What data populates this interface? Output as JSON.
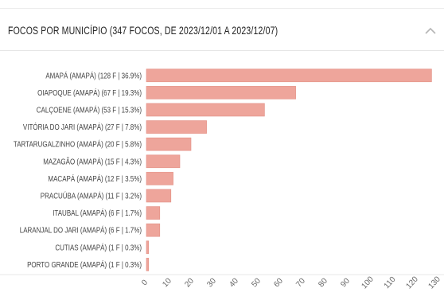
{
  "panel": {
    "title": "FOCOS POR MUNICÍPIO (347 FOCOS, DE 2023/12/01 A 2023/12/07)",
    "collapse_icon": "chevron-up-icon"
  },
  "chart_data": {
    "type": "bar",
    "orientation": "horizontal",
    "categories": [
      "AMAPÁ (AMAPÁ) (128 F | 36.9%)",
      "OIAPOQUE (AMAPÁ) (67 F | 19.3%)",
      "CALÇOENE (AMAPÁ) (53 F | 15.3%)",
      "VITÓRIA DO JARI (AMAPÁ) (27 F | 7.8%)",
      "TARTARUGALZINHO (AMAPÁ) (20 F | 5.8%)",
      "MAZAGÃO (AMAPÁ) (15 F | 4.3%)",
      "MACAPÁ (AMAPÁ) (12 F | 3.5%)",
      "PRACUÚBA (AMAPÁ) (11 F | 3.2%)",
      "ITAUBAL (AMAPÁ) (6 F | 1.7%)",
      "LARANJAL DO JARI (AMAPÁ) (6 F | 1.7%)",
      "CUTIAS (AMAPÁ) (1 F | 0.3%)",
      "PORTO GRANDE (AMAPÁ) (1 F | 0.3%)"
    ],
    "values": [
      128,
      67,
      53,
      27,
      20,
      15,
      12,
      11,
      6,
      6,
      1,
      1
    ],
    "x_ticks": [
      0,
      10,
      20,
      30,
      40,
      50,
      60,
      70,
      80,
      90,
      100,
      110,
      120,
      130
    ],
    "xlim": [
      0,
      130
    ],
    "grid": false,
    "bar_color": "#eea59b",
    "bar_stroke": "#e38e83"
  }
}
